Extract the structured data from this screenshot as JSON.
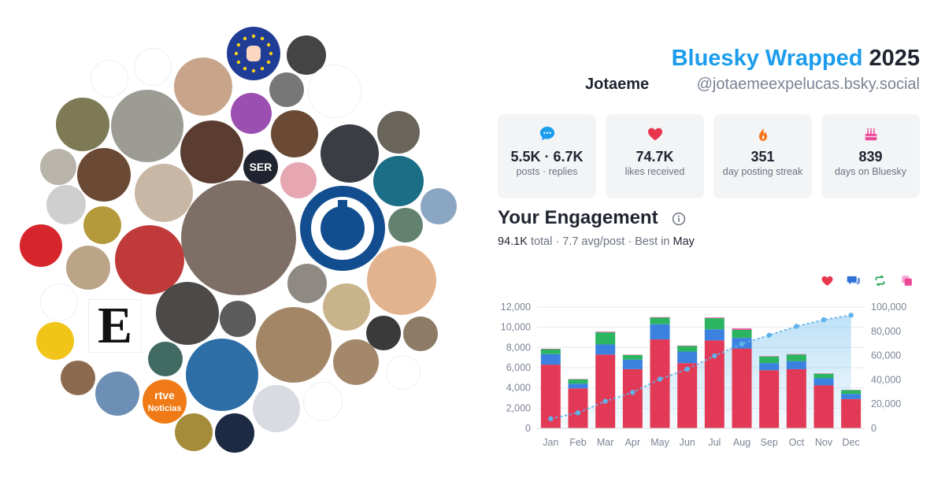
{
  "header": {
    "brand": "Bluesky Wrapped",
    "year": "2025",
    "display_name": "Jotaeme",
    "handle": "@jotaemeexpelucas.bsky.social"
  },
  "stats": [
    {
      "icon": "speech-bubble-icon",
      "value": "5.5K · 6.7K",
      "label": "posts · replies",
      "color": "#1b9cec"
    },
    {
      "icon": "heart-icon",
      "value": "74.7K",
      "label": "likes received",
      "color": "#e8364f"
    },
    {
      "icon": "flame-icon",
      "value": "351",
      "label": "day posting streak",
      "color": "#f97316"
    },
    {
      "icon": "cake-icon",
      "value": "839",
      "label": "days on Bluesky",
      "color": "#ec4899"
    }
  ],
  "engagement": {
    "title": "Your Engagement",
    "total_value": "94.1K",
    "total_word": "total",
    "avg": "· 7.7 avg/post · Best in",
    "best_month": "May"
  },
  "legend": [
    {
      "icon": "heart-icon",
      "color": "#e8364f"
    },
    {
      "icon": "reply-icon",
      "color": "#2f6fd6"
    },
    {
      "icon": "repost-icon",
      "color": "#22a854"
    },
    {
      "icon": "quote-icon",
      "color": "#ec4899"
    }
  ],
  "avatars": {
    "rtve_line1": "rtve",
    "rtve_line2": "Noticias",
    "ser_label": "SER",
    "e_label": "E"
  },
  "chart_data": {
    "type": "bar",
    "categories": [
      "Jan",
      "Feb",
      "Mar",
      "Apr",
      "May",
      "Jun",
      "Jul",
      "Aug",
      "Sep",
      "Oct",
      "Nov",
      "Dec"
    ],
    "series": [
      {
        "values": [
          6300,
          3950,
          7300,
          5850,
          8800,
          6450,
          8700,
          7900,
          5750,
          5850,
          4250,
          2900
        ]
      },
      {
        "values": [
          1050,
          480,
          1000,
          950,
          1500,
          1150,
          1100,
          1050,
          700,
          800,
          700,
          500
        ]
      },
      {
        "values": [
          480,
          420,
          1200,
          450,
          650,
          550,
          1100,
          800,
          650,
          650,
          450,
          380
        ]
      },
      {
        "values": [
          40,
          30,
          60,
          30,
          50,
          40,
          60,
          130,
          40,
          40,
          30,
          20
        ]
      }
    ],
    "cumulative": [
      7870,
      12750,
      22310,
      29590,
      40590,
      48780,
      59740,
      69620,
      76760,
      84100,
      89530,
      93330
    ],
    "colors": [
      "#e23a56",
      "#3b82e0",
      "#2bb561",
      "#ec4899"
    ],
    "y_ticks": [
      "0",
      "2,000",
      "4,000",
      "6,000",
      "8,000",
      "10,000",
      "12,000"
    ],
    "y2_ticks": [
      "0",
      "20,000",
      "40,000",
      "60,000",
      "80,000",
      "100,000"
    ],
    "ylim": [
      0,
      12000
    ],
    "y2lim": [
      0,
      100000
    ],
    "grid": true
  }
}
